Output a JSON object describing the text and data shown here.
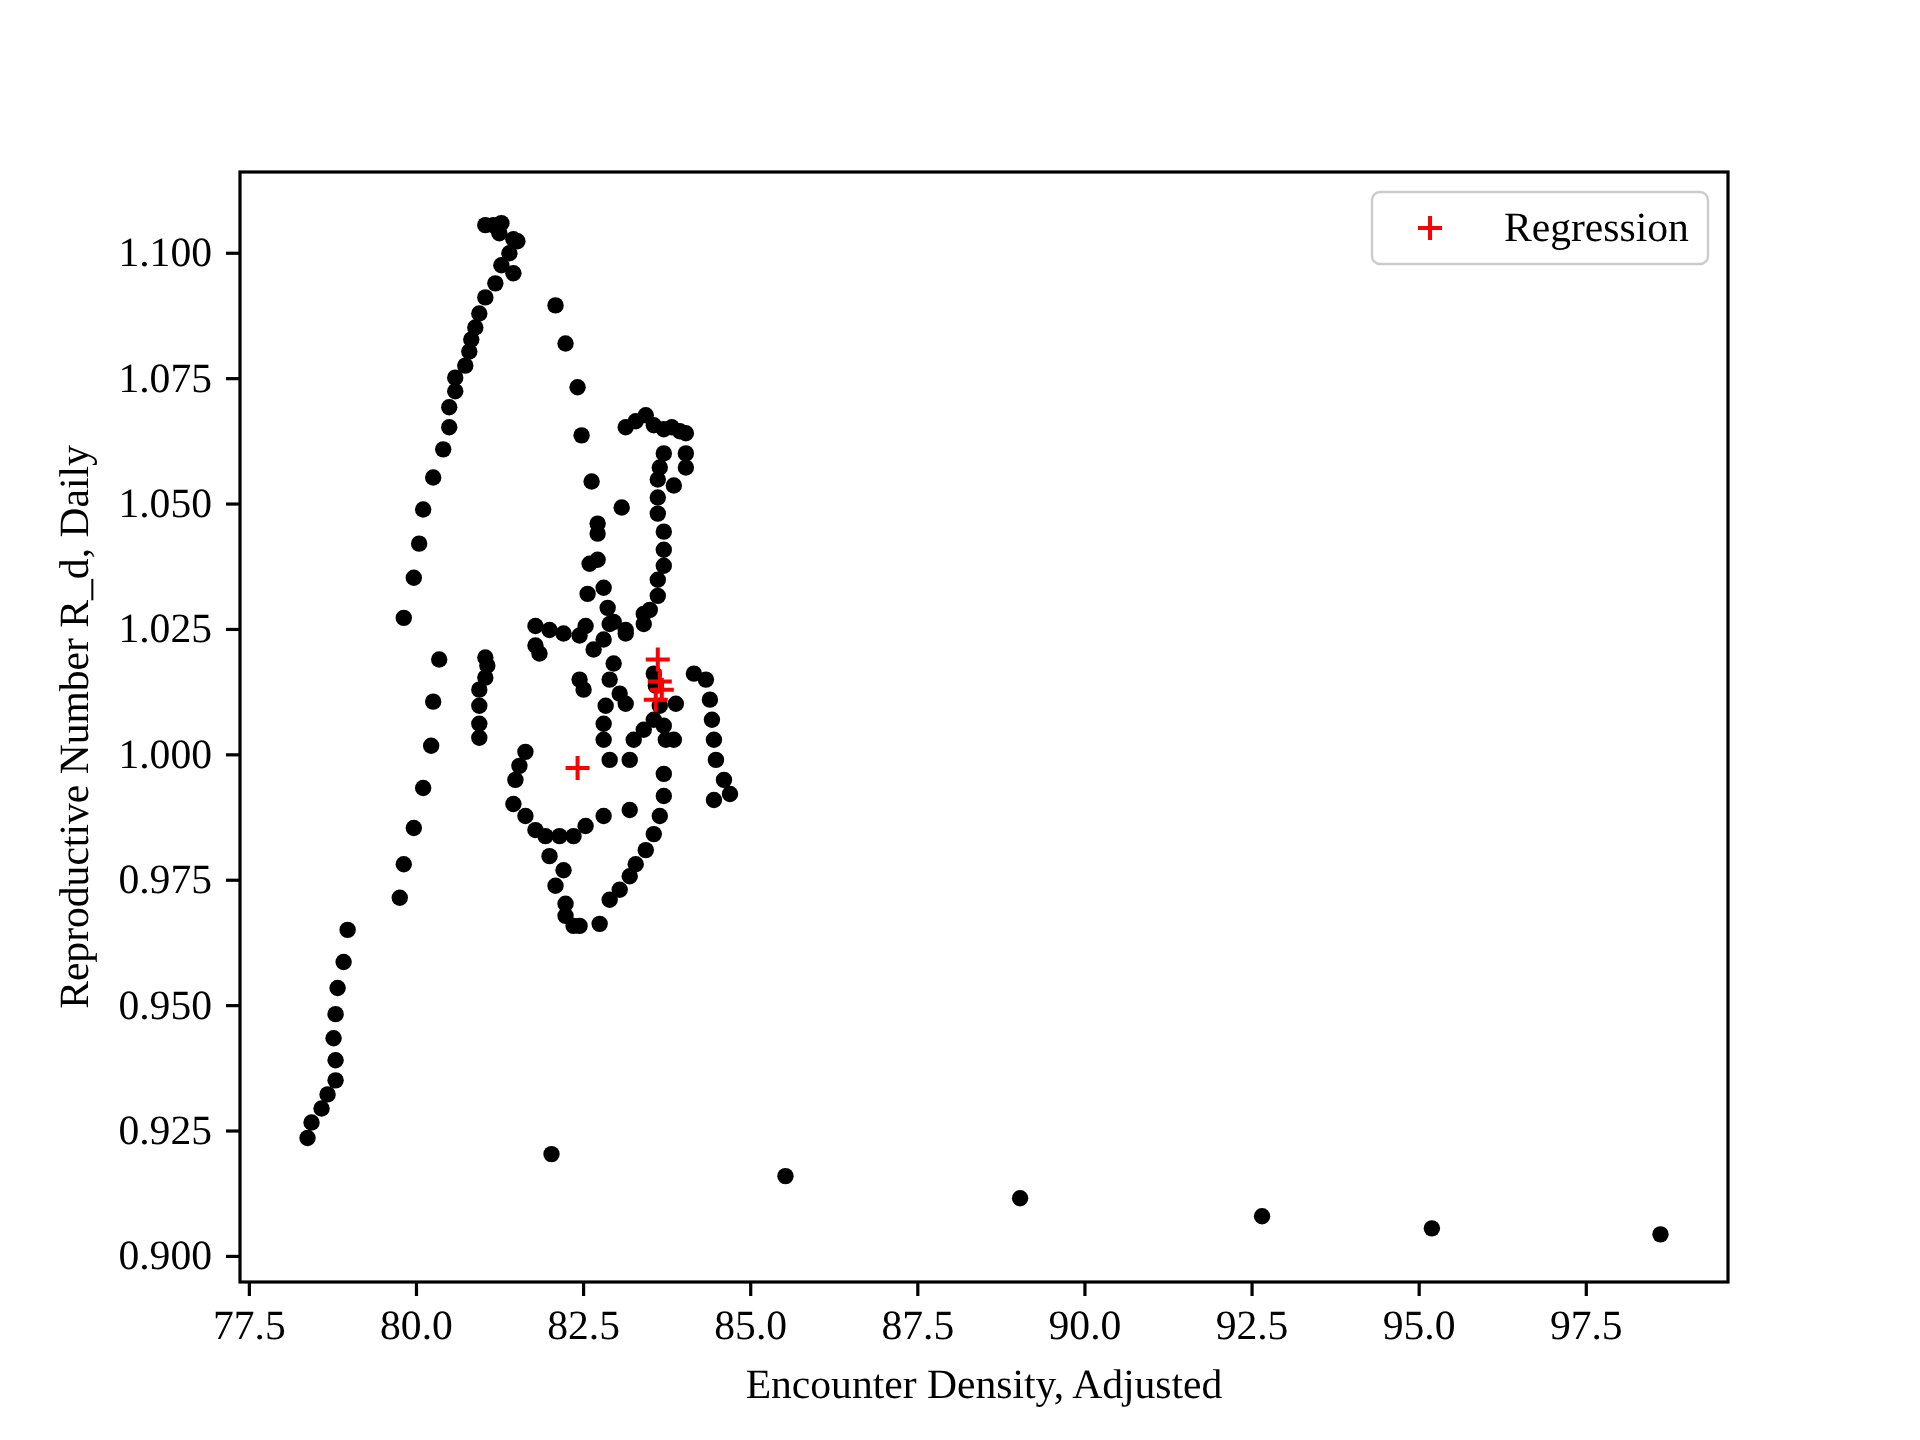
{
  "chart_data": {
    "type": "scatter",
    "xlabel": "Encounter Density, Adjusted",
    "ylabel": "Reproductive Number R_d, Daily",
    "xlim": [
      77.36,
      99.62
    ],
    "ylim": [
      0.8949,
      1.1162
    ],
    "xticks": [
      77.5,
      {
        "value": 80,
        "label": "80.0"
      },
      82.5,
      {
        "value": 85,
        "label": "85.0"
      },
      87.5,
      {
        "value": 90,
        "label": "90.0"
      },
      92.5,
      {
        "value": 95,
        "label": "95.0"
      },
      97.5
    ],
    "yticks": [
      {
        "value": 0.9,
        "label": "0.900"
      },
      0.925,
      {
        "value": 0.95,
        "label": "0.950"
      },
      0.975,
      {
        "value": 1,
        "label": "1.000"
      },
      1.025,
      {
        "value": 1.05,
        "label": "1.050"
      },
      1.075,
      {
        "value": 1.1,
        "label": "1.100"
      }
    ],
    "legend": "top right",
    "series": [
      {
        "color": "#000000",
        "marker": "circle",
        "x": [
          78.37,
          78.43,
          78.58,
          78.67,
          78.79,
          78.79,
          78.76,
          78.79,
          78.82,
          78.91,
          78.97,
          79.75,
          79.81,
          79.96,
          80.1,
          80.22,
          80.25,
          80.34,
          79.81,
          79.96,
          80.04,
          80.1,
          80.25,
          80.4,
          80.49,
          80.49,
          80.58,
          80.58,
          80.73,
          80.79,
          80.82,
          80.88,
          80.94,
          81.03,
          81.18,
          81.27,
          81.45,
          81.39,
          81.45,
          81.24,
          81.15,
          81.03,
          81.27,
          81.51,
          82.08,
          82.23,
          82.41,
          82.47,
          82.62,
          82.71,
          82.71,
          82.71,
          82.59,
          82.8,
          82.56,
          82.86,
          82.95,
          83.13,
          83.4,
          83.49,
          83.61,
          83.61,
          83.7,
          83.7,
          83.7,
          83.61,
          83.61,
          83.61,
          83.64,
          83.7,
          83.13,
          83.28,
          83.43,
          83.55,
          83.7,
          83.82,
          83.94,
          84.03,
          84.03,
          84.03,
          83.85,
          83.07,
          81.03,
          81.06,
          81.03,
          80.94,
          80.94,
          80.94,
          80.94,
          81.78,
          81.99,
          82.2,
          82.44,
          81.78,
          81.84,
          82.53,
          82.65,
          82.8,
          82.89,
          83.13,
          83.4,
          82.95,
          82.89,
          82.44,
          82.5,
          83.04,
          83.13,
          82.83,
          82.8,
          82.8,
          82.89,
          83.19,
          83.25,
          83.4,
          83.55,
          83.64,
          83.73,
          83.85,
          83.7,
          83.88,
          83.55,
          83.58,
          84.15,
          84.33,
          84.39,
          84.42,
          84.45,
          84.48,
          84.6,
          84.69,
          84.45,
          83.7,
          83.7,
          83.64,
          83.55,
          83.43,
          83.28,
          83.19,
          83.04,
          82.89,
          82.74,
          83.19,
          82.8,
          82.53,
          82.35,
          82.14,
          81.93,
          81.78,
          81.63,
          81.45,
          81.48,
          81.54,
          81.63,
          81.99,
          82.2,
          82.08,
          82.23,
          82.23,
          82.35,
          82.44,
          82.02,
          85.52,
          89.03,
          92.65,
          95.19,
          98.61
        ],
        "values": [
          0.9236,
          0.9267,
          0.9295,
          0.9323,
          0.9351,
          0.9391,
          0.9435,
          0.9483,
          0.9535,
          0.9587,
          0.9651,
          0.9715,
          0.9782,
          0.9854,
          0.9934,
          1.0018,
          1.0106,
          1.019,
          1.0273,
          1.0353,
          1.0421,
          1.0489,
          1.0553,
          1.0609,
          1.0653,
          1.0693,
          1.0725,
          1.0752,
          1.0776,
          1.0804,
          1.0828,
          1.0852,
          1.088,
          1.0912,
          1.094,
          1.0976,
          1.096,
          1.1,
          1.1028,
          1.104,
          1.1056,
          1.1056,
          1.106,
          1.1024,
          1.0896,
          1.082,
          1.0733,
          1.0637,
          1.0545,
          1.0461,
          1.0441,
          1.0389,
          1.0381,
          1.0333,
          1.0321,
          1.0293,
          1.0265,
          1.0249,
          1.0261,
          1.0289,
          1.0317,
          1.0349,
          1.0377,
          1.0409,
          1.0445,
          1.0481,
          1.0513,
          1.0549,
          1.0573,
          1.0601,
          1.0653,
          1.0665,
          1.0677,
          1.0657,
          1.0649,
          1.0653,
          1.0645,
          1.0641,
          1.0601,
          1.0573,
          1.0537,
          1.0493,
          1.0194,
          1.0178,
          1.0154,
          1.013,
          1.0098,
          1.0062,
          1.0034,
          1.0257,
          1.0249,
          1.0242,
          1.0238,
          1.0218,
          1.0202,
          1.0257,
          1.021,
          1.023,
          1.0261,
          1.0242,
          1.0281,
          1.0182,
          1.015,
          1.015,
          1.013,
          1.0122,
          1.0102,
          1.0098,
          1.0062,
          1.003,
          0.999,
          0.999,
          1.003,
          1.005,
          1.007,
          1.0098,
          1.003,
          1.003,
          1.0058,
          1.0102,
          1.0162,
          1.0138,
          1.0162,
          1.015,
          1.011,
          1.007,
          1.003,
          0.999,
          0.995,
          0.9922,
          0.991,
          0.9962,
          0.9918,
          0.9878,
          0.9842,
          0.981,
          0.9782,
          0.9758,
          0.9731,
          0.9711,
          0.9663,
          0.989,
          0.9878,
          0.9858,
          0.9838,
          0.9838,
          0.9838,
          0.985,
          0.9878,
          0.9902,
          0.995,
          0.9978,
          1.0006,
          0.9798,
          0.977,
          0.9739,
          0.9703,
          0.9679,
          0.9659,
          0.9659,
          0.9204,
          0.916,
          0.9116,
          0.908,
          0.9056,
          0.9044
        ]
      },
      {
        "name": "Regression",
        "color": "#ff0000",
        "marker": "cross",
        "x": [
          82.41,
          83.61,
          83.64,
          83.67,
          83.58
        ],
        "values": [
          0.9974,
          1.019,
          1.0146,
          1.013,
          1.011
        ]
      }
    ]
  }
}
